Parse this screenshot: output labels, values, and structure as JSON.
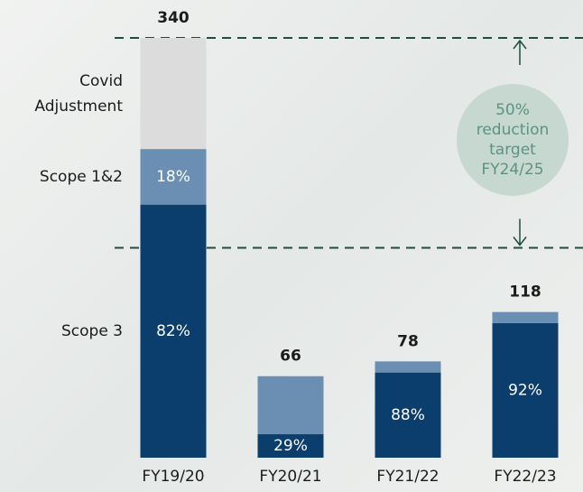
{
  "chart_data": {
    "type": "stacked_bar",
    "categories": [
      "FY19/20",
      "FY20/21",
      "FY21/22",
      "FY22/23"
    ],
    "series": [
      {
        "name": "Scope 3",
        "color": "#0c3e6d",
        "values": [
          205,
          19,
          69,
          109
        ],
        "share_labels": [
          "82%",
          "29%",
          "88%",
          "92%"
        ]
      },
      {
        "name": "Scope 1&2",
        "color": "#6b8fb3",
        "values": [
          45,
          47,
          9,
          9
        ],
        "share_labels": [
          "18%",
          null,
          null,
          null
        ]
      },
      {
        "name": "Covid Adjustment",
        "color": "#dcdcdc",
        "values": [
          90,
          null,
          null,
          null
        ]
      }
    ],
    "totals": [
      340,
      66,
      78,
      118
    ],
    "ylim": [
      0,
      340
    ],
    "target_lines": [
      340,
      170
    ],
    "line_color": "#1f4e3b",
    "annotation": [
      "50%",
      "reduction",
      "target",
      "FY24/25"
    ]
  }
}
